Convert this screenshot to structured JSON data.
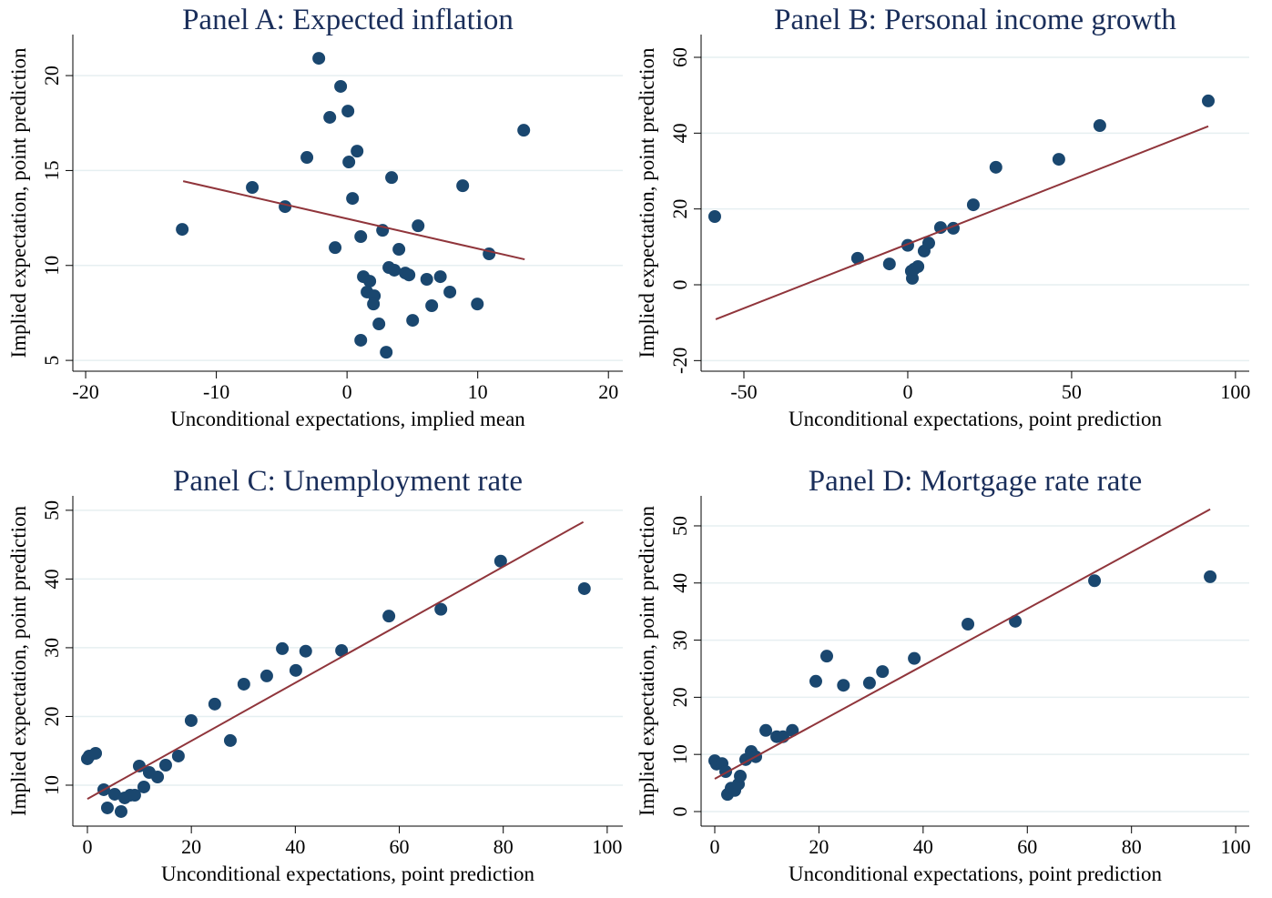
{
  "chart_data": [
    {
      "type": "scatter",
      "title": "Panel A: Expected inflation",
      "xlabel": "Unconditional expectations, implied mean",
      "ylabel": "Implied expectation, point prediction",
      "x": [
        -2.16,
        -0.49,
        -1.32,
        0.07,
        13.52,
        0.77,
        -3.07,
        0.14,
        3.41,
        -7.25,
        8.85,
        -4.74,
        0.42,
        -12.61,
        2.72,
        5.44,
        1.05,
        -0.91,
        3.97,
        10.87,
        1.25,
        3.2,
        3.62,
        4.46,
        4.74,
        1.74,
        6.1,
        7.14,
        1.53,
        2.09,
        7.87,
        2.02,
        9.97,
        6.48,
        5.02,
        2.44,
        1.05,
        3.0
      ],
      "values": [
        20.91,
        19.43,
        17.8,
        18.13,
        17.12,
        16.02,
        15.69,
        15.45,
        14.63,
        14.11,
        14.2,
        13.1,
        13.53,
        11.9,
        11.85,
        12.09,
        11.52,
        10.94,
        10.85,
        10.61,
        9.41,
        9.89,
        9.75,
        9.6,
        9.5,
        9.17,
        9.27,
        9.41,
        8.6,
        8.4,
        8.6,
        7.97,
        7.97,
        7.88,
        7.11,
        6.92,
        6.06,
        5.43
      ],
      "color": "#1a476f",
      "fit": {
        "x": [
          -12.54,
          13.59
        ],
        "values": [
          14.44,
          10.32
        ],
        "color": "#90353b"
      },
      "xlim": [
        -20.98,
        21.1
      ],
      "ylim": [
        4.43,
        22.16
      ],
      "xticks": [
        -20,
        -10,
        0,
        10,
        20
      ],
      "yticks": [
        5,
        10,
        15,
        20
      ],
      "grid": true
    },
    {
      "type": "scatter",
      "title": "Panel B: Personal income growth",
      "xlabel": "Unconditional expectations, point prediction",
      "ylabel": "Implied expectation, point prediction",
      "x": [
        -58.9,
        -15.3,
        -5.6,
        0,
        1.1,
        1.4,
        1.9,
        3.1,
        5.0,
        6.4,
        10.0,
        13.9,
        20.0,
        26.9,
        46.1,
        58.6,
        91.7
      ],
      "values": [
        18.0,
        7.0,
        5.5,
        10.4,
        3.6,
        1.7,
        4.1,
        4.8,
        8.9,
        11.0,
        15.1,
        14.9,
        21.1,
        31.0,
        33.1,
        42.0,
        48.5
      ],
      "color": "#1a476f",
      "fit": {
        "x": [
          -58.6,
          91.7
        ],
        "values": [
          -9.1,
          41.8
        ],
        "color": "#90353b"
      },
      "xlim": [
        -63.06,
        104.2
      ],
      "ylim": [
        -22.8,
        66
      ],
      "xticks": [
        -50,
        0,
        50,
        100
      ],
      "yticks": [
        -20,
        0,
        20,
        40,
        60
      ],
      "grid": true
    },
    {
      "type": "scatter",
      "title": "Panel C: Unemployment rate",
      "xlabel": "Unconditional expectations, point prediction",
      "ylabel": "Implied expectation, point prediction",
      "x": [
        0,
        0.35,
        1.58,
        3.15,
        3.85,
        5.25,
        6.48,
        7.18,
        8.23,
        9.1,
        9.98,
        10.86,
        11.9,
        13.5,
        15.06,
        17.5,
        19.96,
        24.5,
        27.5,
        30.1,
        34.5,
        37.5,
        40.1,
        42.0,
        48.9,
        58.0,
        68.0,
        79.5,
        95.6
      ],
      "values": [
        13.84,
        14.24,
        14.64,
        9.34,
        6.69,
        8.68,
        6.16,
        8.15,
        8.54,
        8.54,
        12.78,
        9.74,
        11.85,
        11.19,
        12.91,
        14.24,
        19.4,
        21.8,
        16.5,
        24.7,
        25.9,
        29.87,
        26.7,
        29.5,
        29.6,
        34.6,
        35.6,
        42.6,
        38.6
      ],
      "color": "#1a476f",
      "fit": {
        "x": [
          0,
          95.4
        ],
        "values": [
          8.0,
          48.3
        ],
        "color": "#90353b"
      },
      "xlim": [
        -2.8,
        103
      ],
      "ylim": [
        4.04,
        52.1
      ],
      "xticks": [
        0,
        20,
        40,
        60,
        80,
        100
      ],
      "yticks": [
        10,
        20,
        30,
        40,
        50
      ],
      "grid": true
    },
    {
      "type": "scatter",
      "title": "Panel D: Mortgage rate rate",
      "xlabel": "Unconditional expectations, point prediction",
      "ylabel": "Implied expectation, point prediction",
      "x": [
        0,
        0.35,
        1.4,
        2.1,
        2.45,
        3.15,
        3.85,
        4.55,
        4.9,
        5.94,
        7.0,
        7.87,
        9.8,
        11.9,
        13.1,
        14.9,
        19.4,
        21.5,
        24.7,
        29.7,
        32.2,
        38.3,
        48.6,
        57.7,
        72.9,
        95.1
      ],
      "values": [
        8.9,
        8.3,
        8.4,
        7.0,
        3.0,
        4.1,
        3.7,
        4.8,
        6.2,
        9.1,
        10.5,
        9.6,
        14.2,
        13.1,
        13.1,
        14.2,
        22.8,
        27.2,
        22.1,
        22.5,
        24.5,
        26.8,
        32.8,
        33.3,
        40.4,
        41.1
      ],
      "color": "#1a476f",
      "fit": {
        "x": [
          0,
          95.1
        ],
        "values": [
          5.73,
          52.9
        ],
        "color": "#90353b"
      },
      "xlim": [
        -2.62,
        102.6
      ],
      "ylim": [
        -2.55,
        55.25
      ],
      "xticks": [
        0,
        20,
        40,
        60,
        80,
        100
      ],
      "yticks": [
        0,
        10,
        20,
        30,
        40,
        50
      ],
      "grid": true
    }
  ]
}
